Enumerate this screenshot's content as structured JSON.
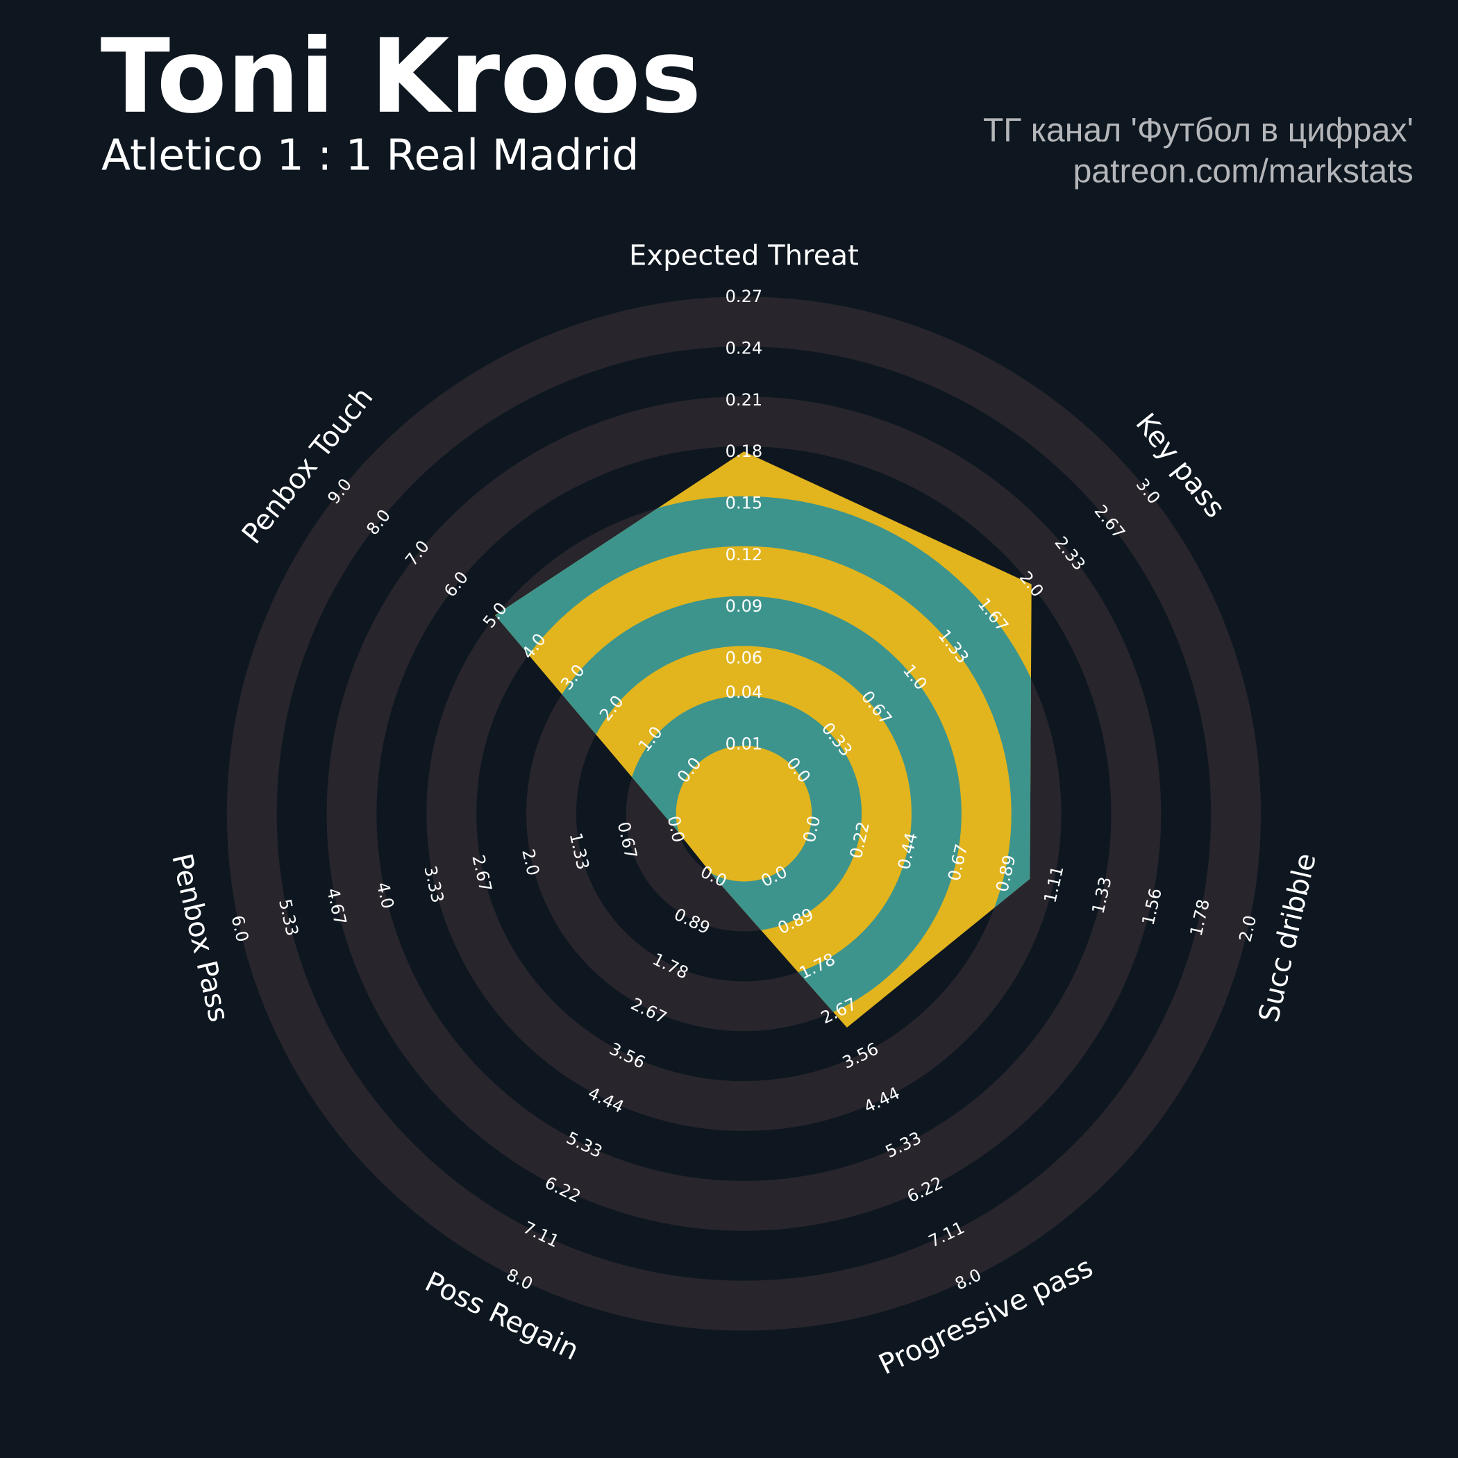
{
  "chart_data": {
    "type": "radar",
    "title": "Toni Kroos",
    "subtitle": "Atletico 1 : 1 Real Madrid",
    "annotations": [
      "ТГ канал 'Футбол в цифрах'",
      "patreon.com/markstats"
    ],
    "categories": [
      "Expected Threat",
      "Key pass",
      "Succ dribble",
      "Progressive pass",
      "Poss Regain",
      "Penbox Pass",
      "Penbox Touch"
    ],
    "ticks": [
      [
        0.01,
        0.04,
        0.06,
        0.09,
        0.12,
        0.15,
        0.18,
        0.21,
        0.24,
        0.27
      ],
      [
        {
          "value": 0,
          "label": "0.0"
        },
        0.33,
        0.67,
        {
          "value": 1,
          "label": "1.0"
        },
        1.33,
        1.67,
        {
          "value": 2,
          "label": "2.0"
        },
        2.33,
        2.67,
        {
          "value": 3,
          "label": "3.0"
        }
      ],
      [
        {
          "value": 0,
          "label": "0.0"
        },
        0.22,
        0.44,
        0.67,
        0.89,
        1.11,
        1.33,
        1.56,
        1.78,
        {
          "value": 2,
          "label": "2.0"
        }
      ],
      [
        {
          "value": 0,
          "label": "0.0"
        },
        0.89,
        1.78,
        2.67,
        3.56,
        4.44,
        5.33,
        6.22,
        7.11,
        {
          "value": 8,
          "label": "8.0"
        }
      ],
      [
        {
          "value": 0,
          "label": "0.0"
        },
        0.89,
        1.78,
        2.67,
        3.56,
        4.44,
        5.33,
        6.22,
        7.11,
        {
          "value": 8,
          "label": "8.0"
        }
      ],
      [
        {
          "value": 0,
          "label": "0.0"
        },
        0.67,
        1.33,
        {
          "value": 2,
          "label": "2.0"
        },
        2.67,
        3.33,
        {
          "value": 4,
          "label": "4.0"
        },
        4.67,
        5.33,
        {
          "value": 6,
          "label": "6.0"
        }
      ],
      [
        {
          "value": 0,
          "label": "0.0"
        },
        {
          "value": 1,
          "label": "1.0"
        },
        {
          "value": 2,
          "label": "2.0"
        },
        {
          "value": 3,
          "label": "3.0"
        },
        {
          "value": 4,
          "label": "4.0"
        },
        {
          "value": 5,
          "label": "5.0"
        },
        {
          "value": 6,
          "label": "6.0"
        },
        {
          "value": 7,
          "label": "7.0"
        },
        {
          "value": 8,
          "label": "8.0"
        },
        {
          "value": 9,
          "label": "9.0"
        }
      ]
    ],
    "series": [
      {
        "values": [
          0.18,
          2,
          1,
          3,
          0,
          0,
          5
        ],
        "colors": [
          "#e2b41d",
          "#3d948d"
        ]
      }
    ],
    "ring_color": "#28252c"
  }
}
